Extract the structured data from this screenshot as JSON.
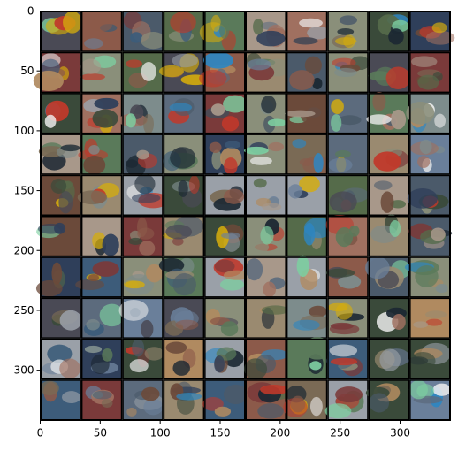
{
  "figure": {
    "background": "#ffffff",
    "border_color": "#000000",
    "grid": {
      "rows": 10,
      "cols": 10,
      "tile_separator": "#000000"
    },
    "x_axis": {
      "ticks": [
        0,
        50,
        100,
        150,
        200,
        250,
        300
      ],
      "range": [
        0,
        342
      ]
    },
    "y_axis": {
      "ticks": [
        0,
        50,
        100,
        150,
        200,
        250,
        300
      ],
      "range": [
        0,
        342
      ]
    },
    "tile_palette": [
      "#8a8f7a",
      "#5c6b7d",
      "#3a4a3a",
      "#7a6a55",
      "#4b5a6a",
      "#9a8a70",
      "#6a7f9a",
      "#556b4a",
      "#a07060",
      "#4a4a55",
      "#7d8c8c",
      "#b08a60",
      "#2f3f5a",
      "#8c5a4a",
      "#5a7a5a",
      "#9aa0a8",
      "#6b4a3a",
      "#3d5c7a",
      "#a8988a",
      "#7a3a3a"
    ],
    "accent_colors": [
      "#c0392b",
      "#2e86c1",
      "#d4ac0d",
      "#f0f0f0",
      "#1c2833",
      "#7dcea0"
    ]
  }
}
